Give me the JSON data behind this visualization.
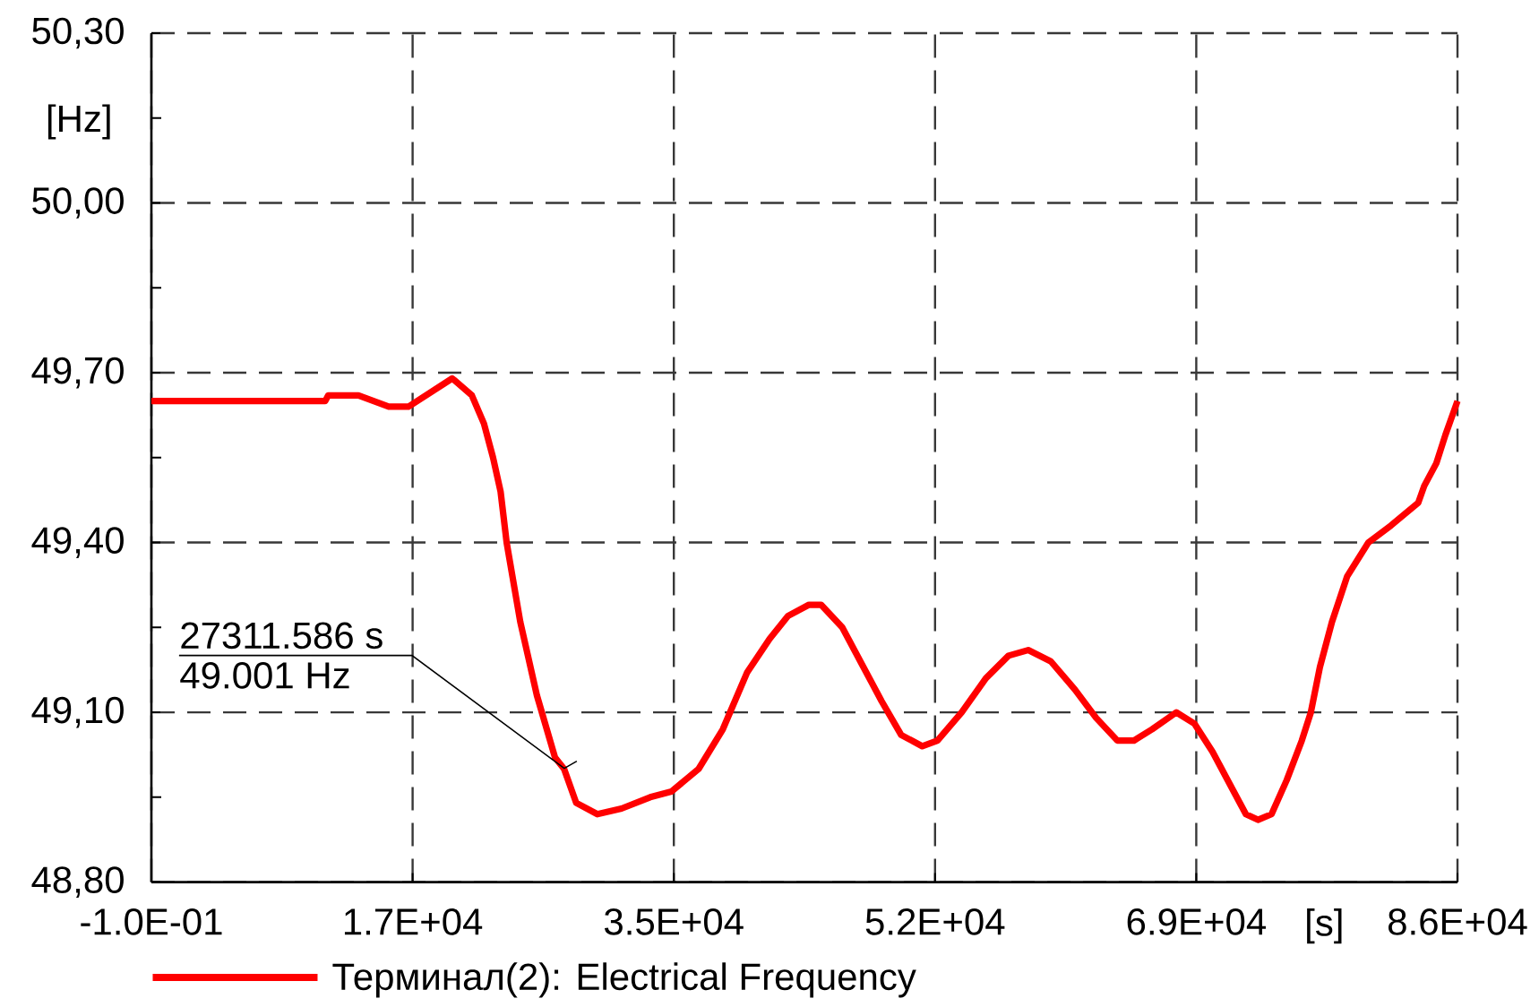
{
  "chart_data": {
    "type": "line",
    "x": [
      0,
      11500,
      11700,
      13700,
      15700,
      17000,
      19900,
      21200,
      22000,
      22600,
      23100,
      23500,
      24400,
      25500,
      26700,
      27300,
      28100,
      29500,
      31100,
      33000,
      34400,
      36200,
      37800,
      39400,
      40900,
      42100,
      43500,
      44300,
      45700,
      46900,
      48300,
      49600,
      51000,
      52000,
      53600,
      55200,
      56700,
      58000,
      59500,
      61100,
      62500,
      63900,
      65000,
      66200,
      67800,
      69000,
      70200,
      71400,
      72400,
      73200,
      74100,
      75100,
      76100,
      76700,
      77300,
      78100,
      79100,
      80500,
      82000,
      83800,
      84200,
      85000,
      85600,
      86400
    ],
    "series": [
      {
        "name": "Терминал(2): Electrical Frequency",
        "color": "#ff0000",
        "values": [
          49.65,
          49.65,
          49.66,
          49.66,
          49.64,
          49.64,
          49.69,
          49.66,
          49.61,
          49.55,
          49.49,
          49.4,
          49.26,
          49.13,
          49.02,
          49.0,
          48.94,
          48.92,
          48.93,
          48.95,
          48.96,
          49.0,
          49.07,
          49.17,
          49.23,
          49.27,
          49.29,
          49.29,
          49.25,
          49.19,
          49.12,
          49.06,
          49.04,
          49.05,
          49.1,
          49.16,
          49.2,
          49.21,
          49.19,
          49.14,
          49.09,
          49.05,
          49.05,
          49.07,
          49.1,
          49.08,
          49.03,
          48.97,
          48.92,
          48.91,
          48.92,
          48.98,
          49.05,
          49.1,
          49.18,
          49.26,
          49.34,
          49.4,
          49.43,
          49.47,
          49.5,
          49.54,
          49.59,
          49.65
        ]
      }
    ],
    "xlim": [
      -0.1,
      86400
    ],
    "ylim": [
      48.8,
      50.3
    ],
    "xticks": [
      {
        "value": -0.1,
        "label": "-1.0E-01"
      },
      {
        "value": 17280,
        "label": "1.7E+04"
      },
      {
        "value": 34560,
        "label": "3.5E+04"
      },
      {
        "value": 51840,
        "label": "5.2E+04"
      },
      {
        "value": 69120,
        "label": "6.9E+04"
      },
      {
        "value": 86400,
        "label": "8.6E+04"
      }
    ],
    "yticks": [
      {
        "value": 48.8,
        "label": "48,80"
      },
      {
        "value": 49.1,
        "label": "49,10"
      },
      {
        "value": 49.4,
        "label": "49,40"
      },
      {
        "value": 49.7,
        "label": "49,70"
      },
      {
        "value": 50.0,
        "label": "50,00"
      },
      {
        "value": 50.3,
        "label": "50,30"
      }
    ],
    "xlabel": "[s]",
    "ylabel": "[Hz]",
    "annotations": [
      {
        "text": "27311.586 s",
        "x": 27311.586,
        "y": 49.001
      },
      {
        "text": "49.001 Hz",
        "x": 27311.586,
        "y": 49.001
      }
    ],
    "grid": true,
    "legend": "bottom left"
  }
}
